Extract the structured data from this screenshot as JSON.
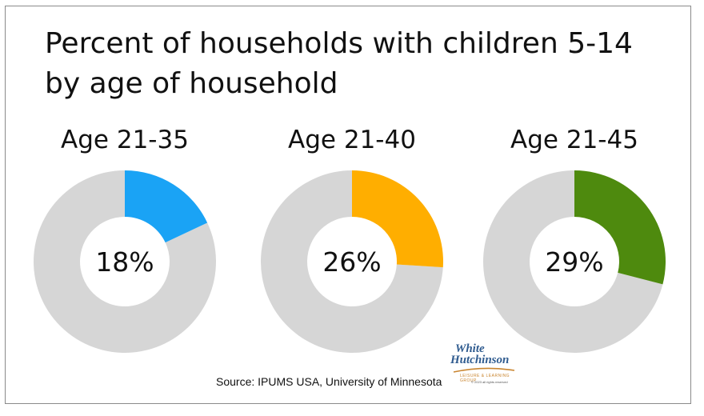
{
  "chart_data": {
    "type": "pie",
    "variant": "donut",
    "title": "Percent of households with children 5-14 by age of household",
    "remainder_color": "#d6d6d6",
    "series": [
      {
        "name": "Age 21-35",
        "value": 18,
        "label": "18%",
        "color": "#1aa3f5"
      },
      {
        "name": "Age 21-40",
        "value": 26,
        "label": "26%",
        "color": "#ffae00"
      },
      {
        "name": "Age 21-45",
        "value": 29,
        "label": "29%",
        "color": "#4e8a0e"
      }
    ]
  },
  "source": "Source: IPUMS USA, University of Minnesota",
  "logo": {
    "line1": "White",
    "line2": "Hutchinson",
    "line3": "LEISURE & LEARNING GROUP",
    "line4": "© 2023 all rights reserved"
  }
}
